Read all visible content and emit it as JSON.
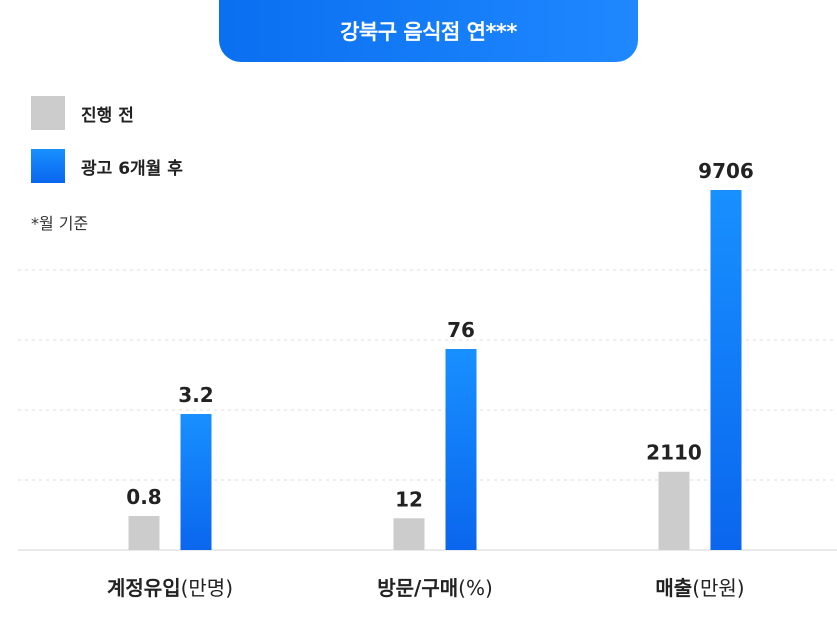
{
  "title": "강북구 음식점 연***",
  "note": "*월 기준",
  "legend": [
    {
      "label": "진행 전",
      "color": "#cccccc"
    },
    {
      "label": "광고 6개월 후",
      "color": "#0f7cf5"
    }
  ],
  "chart_data": {
    "type": "bar",
    "grid": true,
    "grid_style": "dotted",
    "legend_position": "top-left",
    "categories": [
      {
        "label": "계정유입",
        "unit": "(만명)"
      },
      {
        "label": "방문/구매",
        "unit": "(%)"
      },
      {
        "label": "매출",
        "unit": "(만원)"
      }
    ],
    "series": [
      {
        "name": "진행 전",
        "color": "#cccccc",
        "values": [
          0.8,
          12,
          2110
        ],
        "labels": [
          "0.8",
          "12",
          "2110"
        ]
      },
      {
        "name": "광고 6개월 후",
        "color": "#0f7cf5",
        "values": [
          3.2,
          76,
          9706
        ],
        "labels": [
          "3.2",
          "76",
          "9706"
        ]
      }
    ]
  }
}
